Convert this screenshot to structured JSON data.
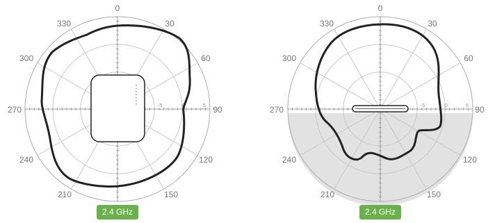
{
  "plots": [
    {
      "band_label": "2.4 GHz",
      "angle_labels": [
        "0",
        "30",
        "60",
        "90",
        "120",
        "150",
        "210",
        "240",
        "270",
        "300",
        "330"
      ],
      "ring_labels": [
        "-5",
        "0",
        "5"
      ],
      "device_icon": "access-point-top-view-icon",
      "lower_half_shaded": false
    },
    {
      "band_label": "2.4 GHz",
      "angle_labels": [
        "0",
        "30",
        "60",
        "90",
        "120",
        "150",
        "210",
        "240",
        "270",
        "300",
        "330"
      ],
      "ring_labels": [
        "-5",
        "0",
        "5"
      ],
      "device_icon": "access-point-side-view-icon",
      "lower_half_shaded": true
    }
  ],
  "colors": {
    "badge_green": "#6ab04c",
    "pattern_line": "#222222",
    "grid": "#c8c8c8",
    "shade": "#e2e2e2"
  }
}
